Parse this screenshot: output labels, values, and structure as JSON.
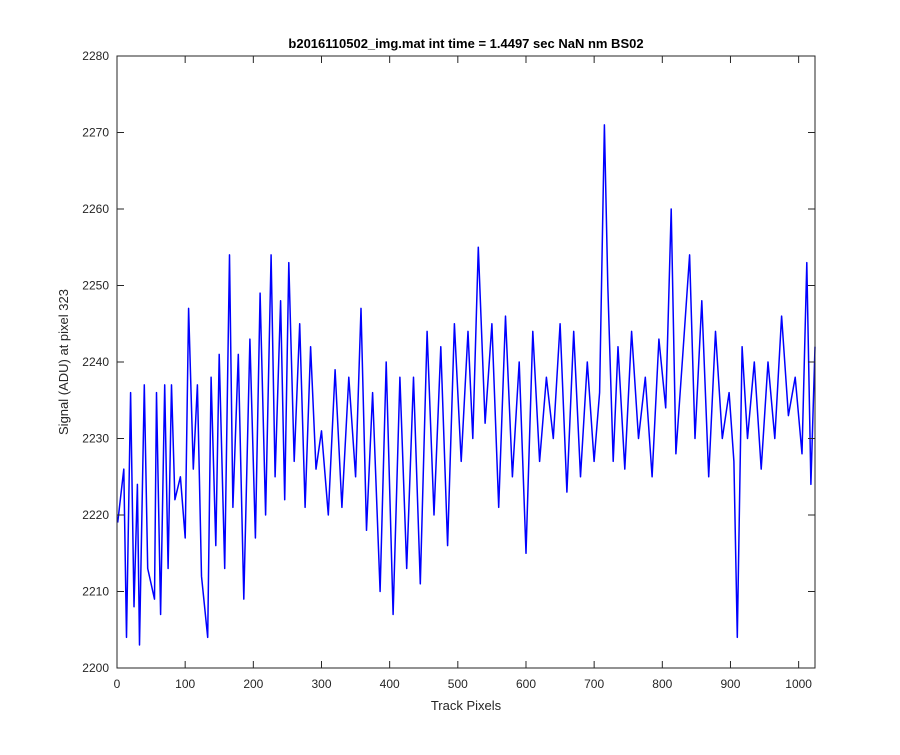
{
  "chart_data": {
    "type": "line",
    "title": "b2016110502_img.mat int time = 1.4497 sec  NaN nm BS02",
    "xlabel": "Track Pixels",
    "ylabel": "Signal (ADU) at pixel 323",
    "xlim": [
      0,
      1024
    ],
    "ylim": [
      2200,
      2280
    ],
    "xticks": [
      0,
      100,
      200,
      300,
      400,
      500,
      600,
      700,
      800,
      900,
      1000
    ],
    "yticks": [
      2200,
      2210,
      2220,
      2230,
      2240,
      2250,
      2260,
      2270,
      2280
    ],
    "grid": false,
    "legend": "none",
    "series_color": "#0000ff",
    "series": [
      {
        "x": [
          1,
          10,
          14,
          20,
          25,
          30,
          33,
          40,
          45,
          55,
          58,
          64,
          70,
          75,
          80,
          85,
          93,
          100,
          105,
          112,
          118,
          124,
          133,
          138,
          145,
          150,
          158,
          165,
          170,
          178,
          186,
          195,
          203,
          210,
          218,
          226,
          232,
          240,
          246,
          252,
          260,
          268,
          276,
          284,
          292,
          300,
          310,
          320,
          330,
          340,
          350,
          358,
          366,
          375,
          386,
          395,
          405,
          415,
          425,
          435,
          445,
          455,
          465,
          475,
          485,
          495,
          505,
          515,
          522,
          530,
          540,
          550,
          560,
          570,
          580,
          590,
          600,
          610,
          620,
          630,
          640,
          650,
          660,
          670,
          680,
          690,
          700,
          708,
          715,
          720,
          728,
          735,
          745,
          755,
          765,
          775,
          785,
          795,
          805,
          813,
          820,
          830,
          840,
          848,
          858,
          868,
          878,
          888,
          898,
          905,
          910,
          917,
          925,
          935,
          945,
          955,
          965,
          975,
          985,
          995,
          1005,
          1012,
          1018,
          1024
        ],
        "values": [
          2219,
          2226,
          2204,
          2236,
          2208,
          2224,
          2203,
          2237,
          2213,
          2209,
          2236,
          2207,
          2237,
          2213,
          2237,
          2222,
          2225,
          2217,
          2247,
          2226,
          2237,
          2212,
          2204,
          2238,
          2216,
          2241,
          2213,
          2254,
          2221,
          2241,
          2209,
          2243,
          2217,
          2249,
          2220,
          2254,
          2225,
          2248,
          2222,
          2253,
          2227,
          2245,
          2221,
          2242,
          2226,
          2231,
          2220,
          2239,
          2221,
          2238,
          2225,
          2247,
          2218,
          2236,
          2210,
          2240,
          2207,
          2238,
          2213,
          2238,
          2211,
          2244,
          2220,
          2242,
          2216,
          2245,
          2227,
          2244,
          2230,
          2255,
          2232,
          2245,
          2221,
          2246,
          2225,
          2240,
          2215,
          2244,
          2227,
          2238,
          2230,
          2245,
          2223,
          2244,
          2225,
          2240,
          2227,
          2236,
          2271,
          2250,
          2227,
          2242,
          2226,
          2244,
          2230,
          2238,
          2225,
          2243,
          2234,
          2260,
          2228,
          2241,
          2254,
          2230,
          2248,
          2225,
          2244,
          2230,
          2236,
          2227,
          2204,
          2242,
          2230,
          2240,
          2226,
          2240,
          2230,
          2246,
          2233,
          2238,
          2228,
          2253,
          2224,
          2242
        ]
      }
    ]
  }
}
